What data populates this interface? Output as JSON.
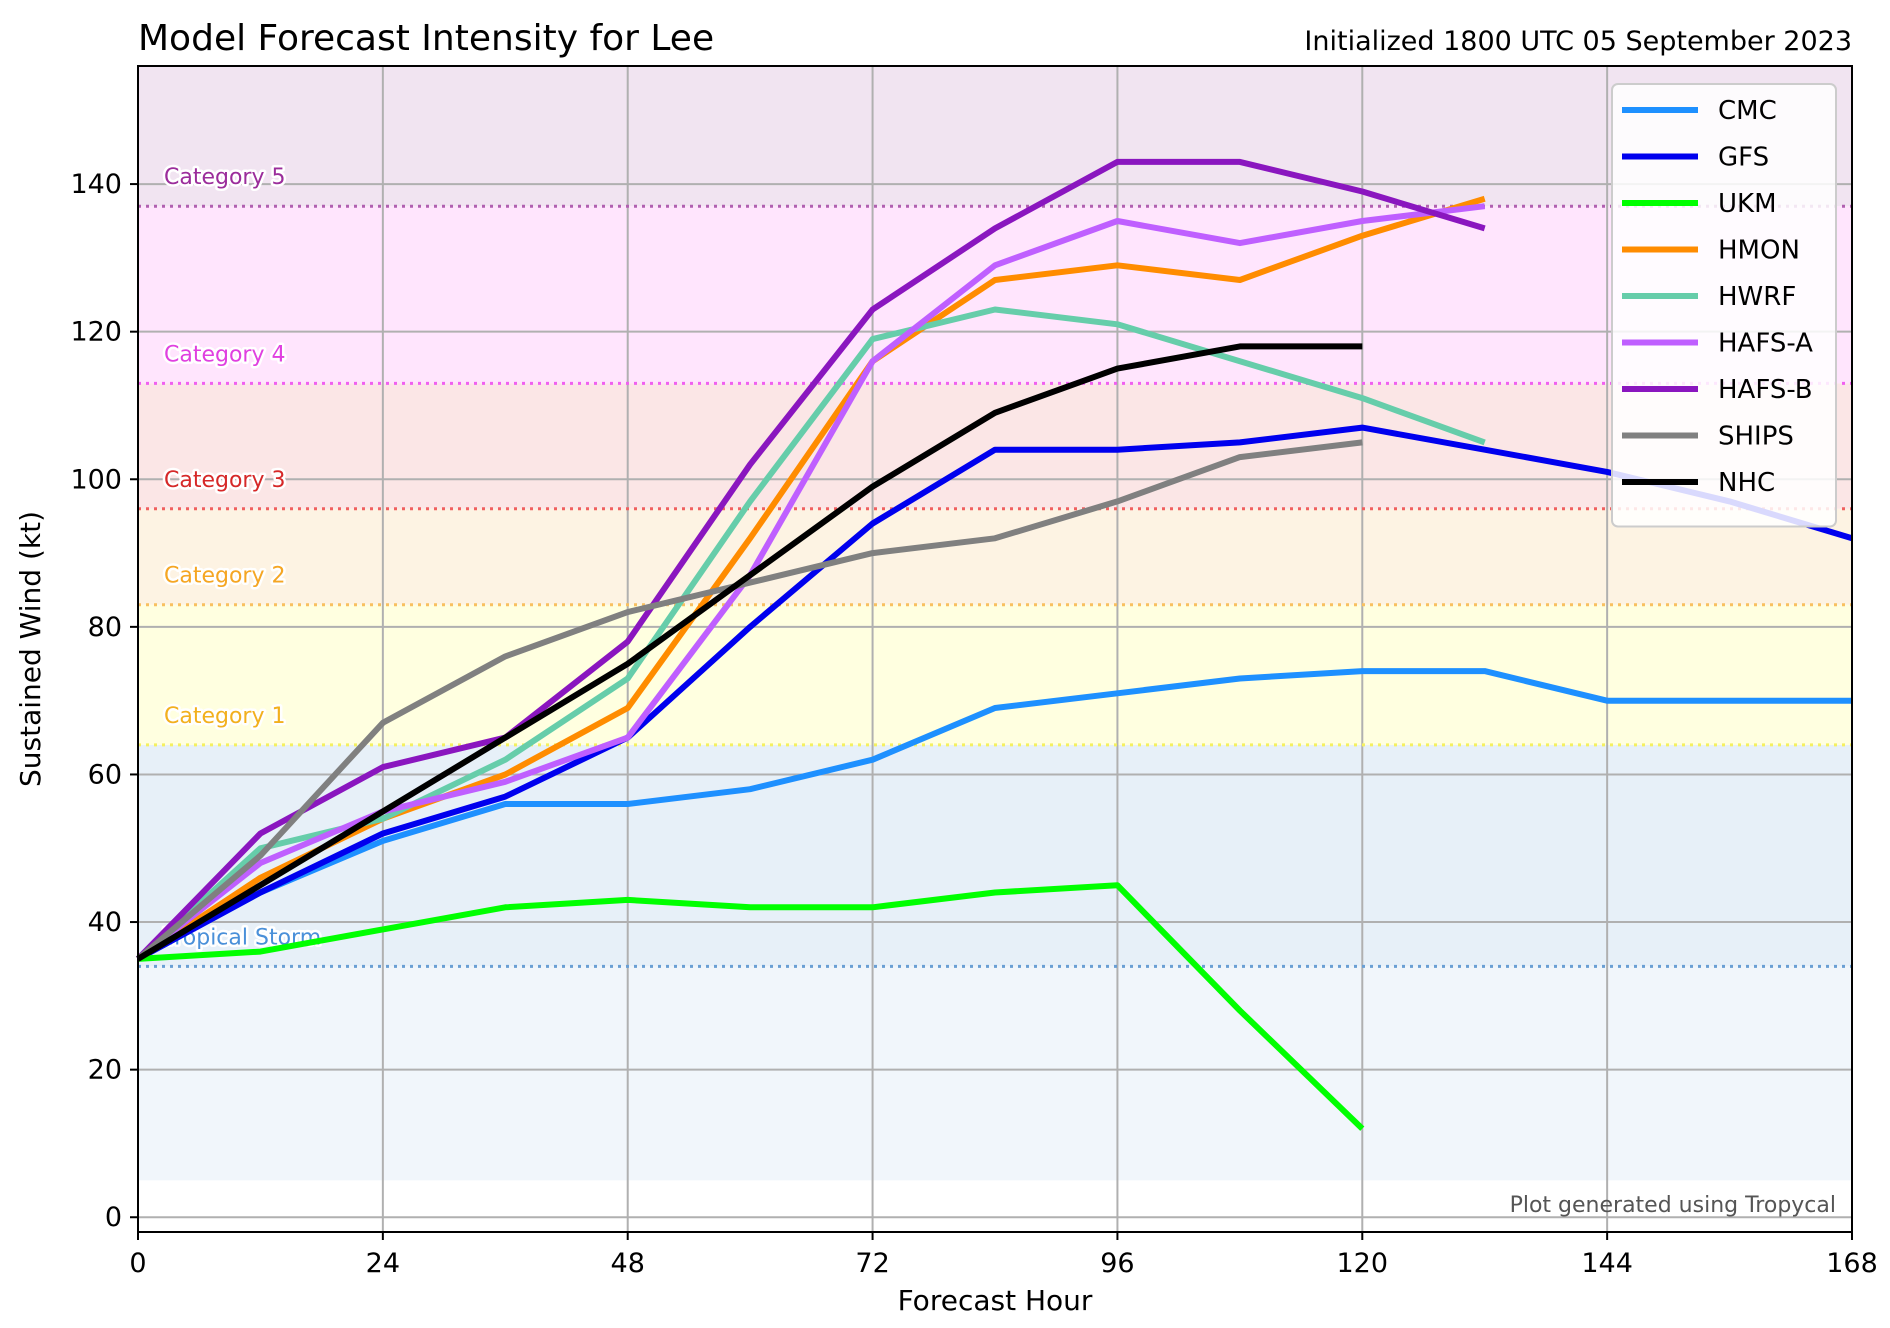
{
  "header": {
    "title": "Model Forecast Intensity for Lee",
    "subtitle": "Initialized 1800 UTC 05 September 2023"
  },
  "credit": "Plot generated using Tropycal",
  "chart_data": {
    "type": "line",
    "title": "Model Forecast Intensity for Lee",
    "subtitle": "Initialized 1800 UTC 05 September 2023",
    "xlabel": "Forecast Hour",
    "ylabel": "Sustained Wind (kt)",
    "xlim": [
      0,
      168
    ],
    "ylim": [
      -2,
      156
    ],
    "xticks": [
      0,
      24,
      48,
      72,
      96,
      120,
      144,
      168
    ],
    "yticks": [
      0,
      20,
      40,
      60,
      80,
      100,
      120,
      140
    ],
    "grid": true,
    "legend_position": "top-right",
    "categories": [
      {
        "label": "Tropical Storm",
        "threshold": 34,
        "top": 64,
        "line_color": "#6a9fd4",
        "band_color": "#e7f0f8",
        "text_color": "#4a90d9"
      },
      {
        "label": "Category 1",
        "threshold": 64,
        "top": 83,
        "line_color": "#f4f060",
        "band_color": "#ffffe0",
        "text_color": "#f2b01e"
      },
      {
        "label": "Category 2",
        "threshold": 83,
        "top": 96,
        "line_color": "#f8c060",
        "band_color": "#fdf3e3",
        "text_color": "#f5a623"
      },
      {
        "label": "Category 3",
        "threshold": 96,
        "top": 113,
        "line_color": "#f06060",
        "band_color": "#fbe6e6",
        "text_color": "#d62828"
      },
      {
        "label": "Category 4",
        "threshold": 113,
        "top": 137,
        "line_color": "#f060f0",
        "band_color": "#ffe5fd",
        "text_color": "#e040e0"
      },
      {
        "label": "Category 5",
        "threshold": 137,
        "top": 156,
        "line_color": "#b060b0",
        "band_color": "#f1e4f1",
        "text_color": "#9b2d9b"
      }
    ],
    "below_ts_band": {
      "bottom": 5,
      "color": "#f1f6fb"
    },
    "series": [
      {
        "name": "CMC",
        "color": "#1e90ff",
        "x": [
          0,
          12,
          24,
          36,
          48,
          60,
          72,
          84,
          96,
          108,
          120,
          132,
          144,
          156,
          168
        ],
        "values": [
          35,
          44,
          51,
          56,
          56,
          58,
          62,
          69,
          71,
          73,
          74,
          74,
          70,
          70,
          70
        ]
      },
      {
        "name": "GFS",
        "color": "#0000ee",
        "x": [
          0,
          12,
          24,
          36,
          48,
          60,
          72,
          84,
          96,
          108,
          120,
          132,
          144,
          156,
          168
        ],
        "values": [
          35,
          44,
          52,
          57,
          65,
          80,
          94,
          104,
          104,
          105,
          107,
          104,
          101,
          97,
          92
        ]
      },
      {
        "name": "UKM",
        "color": "#00ff00",
        "x": [
          0,
          12,
          24,
          36,
          48,
          60,
          72,
          84,
          96,
          108,
          120
        ],
        "values": [
          35,
          36,
          39,
          42,
          43,
          42,
          42,
          44,
          45,
          28,
          12
        ]
      },
      {
        "name": "HMON",
        "color": "#ff8c00",
        "x": [
          0,
          12,
          24,
          36,
          48,
          60,
          72,
          84,
          96,
          108,
          120,
          132
        ],
        "values": [
          35,
          46,
          54,
          60,
          69,
          92,
          116,
          127,
          129,
          127,
          133,
          138
        ]
      },
      {
        "name": "HWRF",
        "color": "#66cdaa",
        "x": [
          0,
          12,
          24,
          36,
          48,
          60,
          72,
          84,
          96,
          108,
          120,
          132
        ],
        "values": [
          35,
          50,
          54,
          62,
          73,
          97,
          119,
          123,
          121,
          116,
          111,
          105
        ]
      },
      {
        "name": "HAFS-A",
        "color": "#bf5fff",
        "x": [
          0,
          12,
          24,
          36,
          48,
          60,
          72,
          84,
          96,
          108,
          120,
          132
        ],
        "values": [
          35,
          48,
          55,
          59,
          65,
          87,
          116,
          129,
          135,
          132,
          135,
          137
        ]
      },
      {
        "name": "HAFS-B",
        "color": "#8a16bf",
        "x": [
          0,
          12,
          24,
          36,
          48,
          60,
          72,
          84,
          96,
          108,
          120,
          132
        ],
        "values": [
          35,
          52,
          61,
          65,
          78,
          102,
          123,
          134,
          143,
          143,
          139,
          134
        ]
      },
      {
        "name": "SHIPS",
        "color": "#808080",
        "x": [
          0,
          12,
          24,
          36,
          48,
          60,
          72,
          84,
          96,
          108,
          120
        ],
        "values": [
          35,
          49,
          67,
          76,
          82,
          86,
          90,
          92,
          97,
          103,
          105
        ]
      },
      {
        "name": "NHC",
        "color": "#000000",
        "x": [
          0,
          12,
          24,
          36,
          48,
          60,
          72,
          84,
          96,
          108,
          120
        ],
        "values": [
          35,
          45,
          55,
          65,
          75,
          87,
          99,
          109,
          115,
          118,
          118
        ]
      }
    ]
  }
}
